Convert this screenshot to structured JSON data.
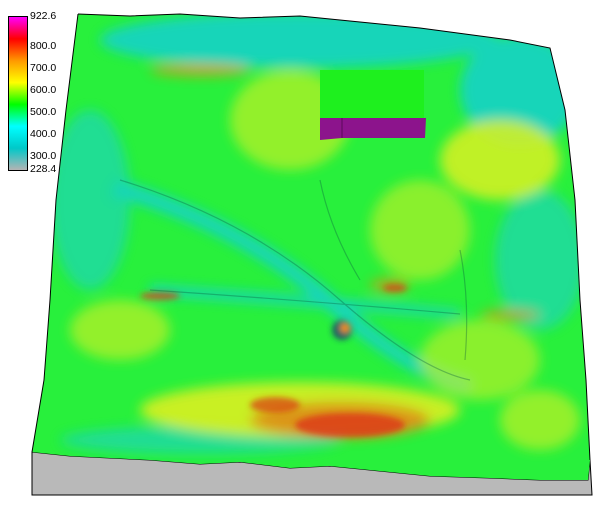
{
  "legend": {
    "ticks": [
      "922.6",
      "800.0",
      "700.0",
      "600.0",
      "500.0",
      "400.0",
      "300.0",
      "228.4"
    ],
    "colors": [
      "#ff00ff",
      "#ff0000",
      "#ff9900",
      "#ffff00",
      "#00ff00",
      "#00ffff",
      "#00c8c8",
      "#b4b4b4"
    ]
  },
  "surface": {
    "colors": {
      "base": "#28f03c",
      "cyan": "#19d2c8",
      "yellow": "#f0f01e",
      "orange": "#f08c14",
      "red": "#dc3c14",
      "side": "#b9b9b9",
      "block_top": "#1ef01e",
      "block_side": "#8c148c"
    }
  }
}
